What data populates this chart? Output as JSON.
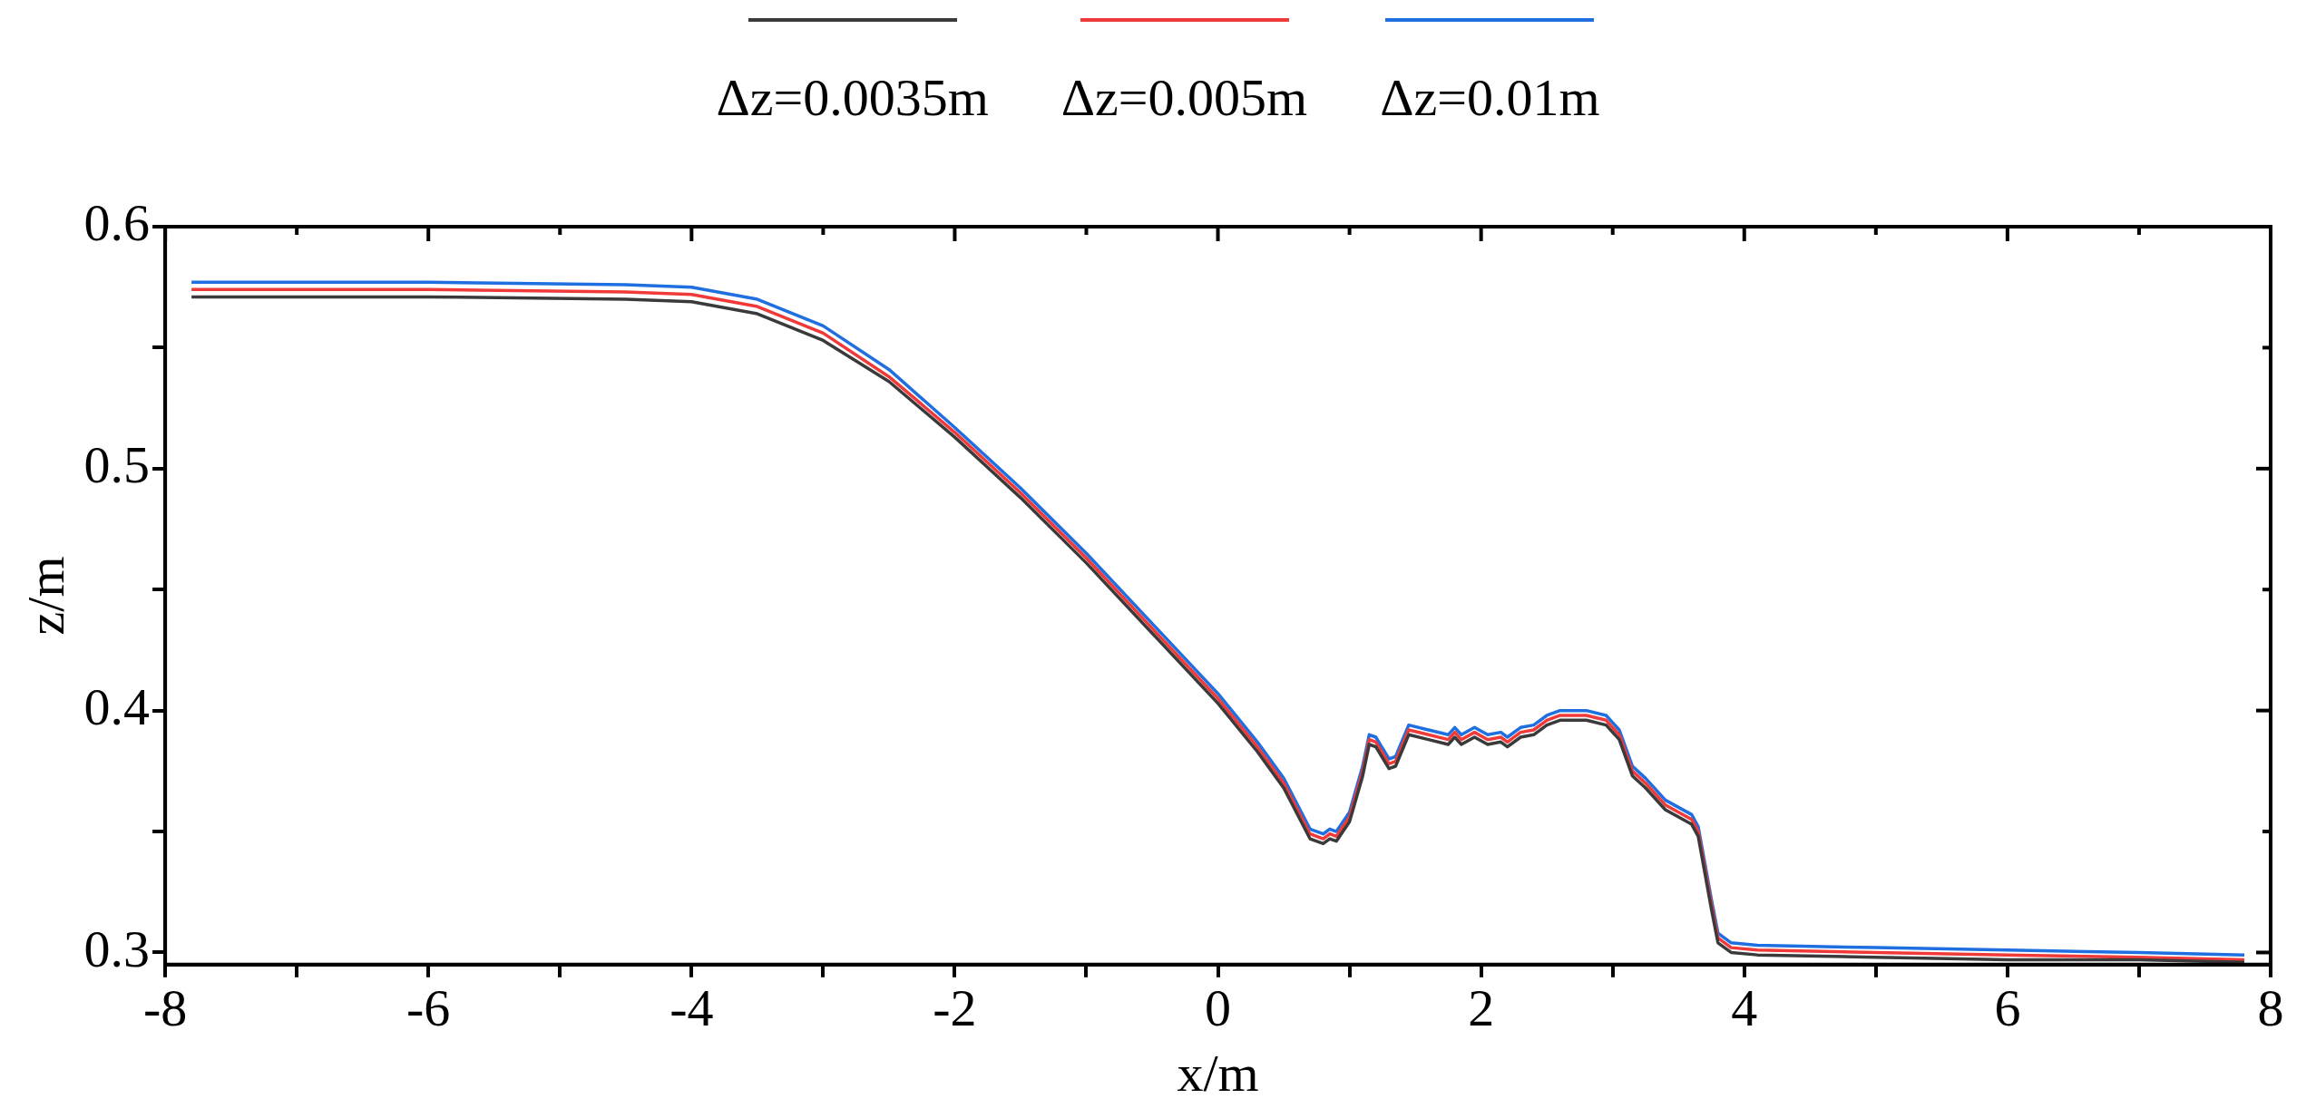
{
  "chart_data": {
    "type": "line",
    "xlabel": "x/m",
    "ylabel": "z/m",
    "xlim": [
      -8,
      8
    ],
    "ylim": [
      0.295,
      0.6
    ],
    "xticks": [
      -8,
      {
        "value": -7,
        "label": null
      },
      -6,
      {
        "value": -5,
        "label": null
      },
      -4,
      {
        "value": -3,
        "label": null
      },
      -2,
      {
        "value": -1,
        "label": null
      },
      0,
      {
        "value": 1,
        "label": null
      },
      2,
      {
        "value": 3,
        "label": null
      },
      4,
      {
        "value": 5,
        "label": null
      },
      6,
      {
        "value": 7,
        "label": null
      },
      8
    ],
    "yticks": [
      0.3,
      {
        "value": 0.35,
        "label": null
      },
      0.4,
      {
        "value": 0.45,
        "label": null
      },
      0.5,
      {
        "value": 0.55,
        "label": null
      },
      0.6
    ],
    "x": [
      -7.8,
      -6,
      -4.5,
      -4,
      -3.5,
      -3,
      -2.5,
      -2,
      -1.5,
      -1,
      -0.5,
      0,
      0.3,
      0.5,
      0.7,
      0.8,
      0.85,
      0.9,
      0.95,
      1.0,
      1.1,
      1.15,
      1.2,
      1.3,
      1.35,
      1.45,
      1.6,
      1.75,
      1.8,
      1.85,
      1.95,
      2.05,
      2.15,
      2.2,
      2.3,
      2.4,
      2.5,
      2.6,
      2.8,
      2.95,
      3.05,
      3.15,
      3.25,
      3.4,
      3.5,
      3.6,
      3.65,
      3.7,
      3.75,
      3.8,
      3.9,
      4.1,
      5,
      6,
      7,
      7.8
    ],
    "series": [
      {
        "name": "Δz=0.0035m",
        "color": "#3a3a3a",
        "values": [
          0.571,
          0.571,
          0.57,
          0.569,
          0.564,
          0.553,
          0.536,
          0.513,
          0.488,
          0.461,
          0.432,
          0.403,
          0.383,
          0.368,
          0.347,
          0.345,
          0.347,
          0.346,
          0.35,
          0.354,
          0.373,
          0.386,
          0.385,
          0.376,
          0.377,
          0.39,
          0.388,
          0.386,
          0.389,
          0.386,
          0.389,
          0.386,
          0.387,
          0.385,
          0.389,
          0.39,
          0.394,
          0.396,
          0.396,
          0.394,
          0.388,
          0.373,
          0.368,
          0.359,
          0.356,
          0.353,
          0.348,
          0.333,
          0.318,
          0.304,
          0.3,
          0.299,
          0.298,
          0.297,
          0.297,
          0.296
        ]
      },
      {
        "name": "Δz=0.005m",
        "color": "#f03a3a",
        "values": [
          0.574,
          0.574,
          0.573,
          0.572,
          0.567,
          0.556,
          0.538,
          0.515,
          0.49,
          0.463,
          0.434,
          0.405,
          0.385,
          0.37,
          0.349,
          0.347,
          0.349,
          0.348,
          0.352,
          0.356,
          0.375,
          0.388,
          0.387,
          0.378,
          0.379,
          0.392,
          0.39,
          0.388,
          0.391,
          0.388,
          0.391,
          0.388,
          0.389,
          0.387,
          0.391,
          0.392,
          0.396,
          0.398,
          0.398,
          0.396,
          0.39,
          0.375,
          0.37,
          0.361,
          0.358,
          0.355,
          0.35,
          0.335,
          0.32,
          0.306,
          0.302,
          0.301,
          0.3,
          0.299,
          0.298,
          0.297
        ]
      },
      {
        "name": "Δz=0.01m",
        "color": "#1f6fe0",
        "values": [
          0.577,
          0.577,
          0.576,
          0.575,
          0.57,
          0.559,
          0.541,
          0.517,
          0.492,
          0.465,
          0.436,
          0.407,
          0.387,
          0.372,
          0.351,
          0.349,
          0.351,
          0.35,
          0.354,
          0.358,
          0.377,
          0.39,
          0.389,
          0.38,
          0.381,
          0.394,
          0.392,
          0.39,
          0.393,
          0.39,
          0.393,
          0.39,
          0.391,
          0.389,
          0.393,
          0.394,
          0.398,
          0.4,
          0.4,
          0.398,
          0.392,
          0.377,
          0.372,
          0.363,
          0.36,
          0.357,
          0.352,
          0.337,
          0.322,
          0.308,
          0.304,
          0.303,
          0.302,
          0.301,
          0.3,
          0.299
        ]
      }
    ],
    "legend": "top",
    "grid": false,
    "marker": "none",
    "line_style": "solid"
  }
}
